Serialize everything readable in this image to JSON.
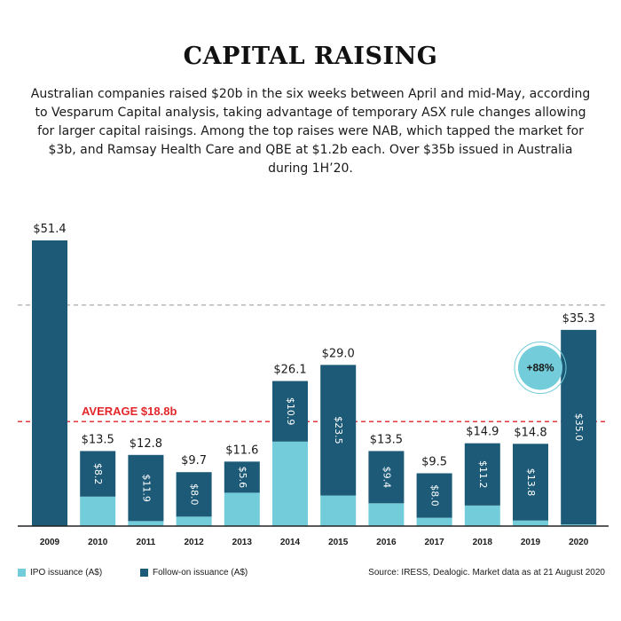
{
  "header": {
    "title": "CAPITAL RAISING",
    "subtitle": "Australian companies raised $20b in the six weeks between April and mid-May, according to Vesparum Capital analysis, taking advantage of temporary ASX rule changes allowing for larger capital raisings. Among the top raises were NAB, which tapped the market for $3b, and Ramsay Health Care and QBE at $1.2b each. Over $35b issued in Australia during 1H’20."
  },
  "legend": {
    "ipo_label": "IPO issuance (A$)",
    "follow_label": "Follow-on issuance (A$)"
  },
  "source": "Source: IRESS, Dealogic. Market data as at 21 August 2020",
  "colors": {
    "ipo": "#72CCD9",
    "follow_on": "#1C5A77",
    "average_line": "#E3262A",
    "upper_line": "#AAAAAA",
    "badge_fill": "#72CCD9"
  },
  "chart_data": {
    "type": "bar",
    "stacked": true,
    "categories": [
      "2009",
      "2010",
      "2011",
      "2012",
      "2013",
      "2014",
      "2015",
      "2016",
      "2017",
      "2018",
      "2019",
      "2020"
    ],
    "series": [
      {
        "name": "IPO issuance (A$)",
        "values": [
          0.0,
          5.3,
          0.9,
          1.7,
          6.0,
          15.2,
          5.5,
          4.1,
          1.5,
          3.7,
          1.0,
          0.3
        ]
      },
      {
        "name": "Follow-on issuance (A$)",
        "values": [
          51.4,
          8.2,
          11.9,
          8.0,
          5.6,
          10.9,
          23.5,
          9.4,
          8.0,
          11.2,
          13.8,
          35.0
        ]
      }
    ],
    "follow_labels": [
      "",
      "$8.2",
      "$11.9",
      "$8.0",
      "$5.6",
      "$10.9",
      "$23.5",
      "$9.4",
      "$8.0",
      "$11.2",
      "$13.8",
      "$35.0"
    ],
    "totals": [
      51.4,
      13.5,
      12.8,
      9.7,
      11.6,
      26.1,
      29.0,
      13.5,
      9.5,
      14.9,
      14.8,
      35.3
    ],
    "total_labels": [
      "$51.4",
      "$13.5",
      "$12.8",
      "$9.7",
      "$11.6",
      "$26.1",
      "$29.0",
      "$13.5",
      "$9.5",
      "$14.9",
      "$14.8",
      "$35.3"
    ],
    "average": {
      "value": 18.8,
      "label": "AVERAGE $18.8b"
    },
    "reference_line": 35.3,
    "badge": {
      "label": "+88%",
      "category": "2019",
      "value": 28.5
    },
    "ylim": [
      0,
      51.4
    ],
    "legend_position": "bottom-left"
  }
}
